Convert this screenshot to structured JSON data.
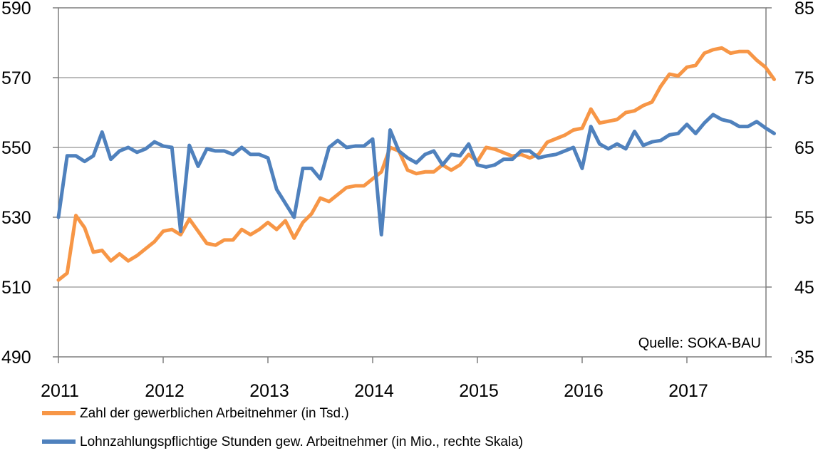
{
  "chart_data": {
    "type": "line",
    "x_labels": [
      "2011",
      "2012",
      "2013",
      "2014",
      "2015",
      "2016",
      "2017"
    ],
    "y_left": {
      "ticks": [
        "590",
        "570",
        "550",
        "530",
        "510",
        "490"
      ],
      "range": [
        490,
        590
      ]
    },
    "y_right": {
      "ticks": [
        "85",
        "75",
        "65",
        "55",
        "45",
        "35"
      ],
      "range": [
        35,
        85
      ]
    },
    "grid": true,
    "legend_position": "bottom",
    "annotation": "Quelle: SOKA-BAU",
    "series": [
      {
        "name": "Zahl der gewerblichen Arbeitnehmer (in Tsd.)",
        "color": "#f79646",
        "axis": "left",
        "values": [
          512.0,
          514.0,
          530.5,
          527.0,
          520.0,
          520.5,
          517.5,
          519.5,
          517.5,
          519.0,
          521.0,
          523.0,
          526.0,
          526.5,
          525.0,
          529.5,
          526.0,
          522.5,
          522.0,
          523.5,
          523.5,
          526.5,
          525.0,
          526.5,
          528.5,
          526.5,
          529.0,
          524.0,
          528.5,
          531.0,
          535.5,
          534.5,
          536.5,
          538.5,
          539.0,
          539.0,
          541.0,
          543.0,
          550.0,
          549.0,
          543.5,
          542.5,
          543.0,
          543.0,
          545.0,
          543.5,
          545.0,
          548.0,
          546.0,
          550.0,
          549.5,
          548.5,
          547.5,
          548.0,
          547.0,
          548.0,
          551.5,
          552.5,
          553.5,
          555.0,
          555.5,
          561.0,
          557.0,
          557.5,
          558.0,
          560.0,
          560.5,
          562.0,
          563.0,
          567.5,
          571.0,
          570.5,
          573.0,
          573.5,
          577.0,
          578.0,
          578.5,
          577.0,
          577.5,
          577.5,
          575.0,
          573.0,
          569.5
        ]
      },
      {
        "name": "Lohnzahlungspflichtige Stunden gew. Arbeitnehmer (in Mio., rechte Skala)",
        "color": "#4f81bd",
        "axis": "right",
        "values": [
          55.0,
          63.8,
          63.8,
          63.0,
          63.8,
          67.2,
          63.3,
          64.5,
          65.0,
          64.3,
          64.8,
          65.8,
          65.2,
          65.0,
          53.0,
          65.3,
          62.3,
          64.8,
          64.5,
          64.5,
          64.0,
          65.0,
          64.0,
          64.0,
          63.5,
          59.0,
          57.0,
          55.0,
          62.0,
          62.0,
          60.5,
          65.0,
          66.0,
          65.0,
          65.2,
          65.2,
          66.2,
          52.5,
          67.5,
          64.5,
          63.5,
          62.8,
          64.0,
          64.5,
          62.5,
          64.0,
          63.8,
          65.5,
          62.5,
          62.2,
          62.5,
          63.3,
          63.3,
          64.5,
          64.5,
          63.5,
          63.8,
          64.0,
          64.5,
          65.0,
          62.0,
          68.0,
          65.5,
          64.8,
          65.5,
          64.8,
          67.3,
          65.3,
          65.8,
          66.0,
          66.8,
          67.0,
          68.3,
          67.0,
          68.5,
          69.7,
          69.0,
          68.7,
          68.0,
          68.0,
          68.7,
          67.8,
          67.0
        ]
      }
    ]
  }
}
